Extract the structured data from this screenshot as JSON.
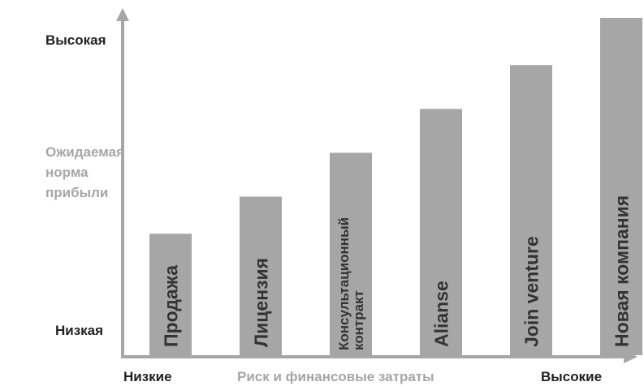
{
  "colors": {
    "bar": "#a6a6a6",
    "axis": "#a6a6a6",
    "text_dark": "#222222",
    "text_muted": "#a6a6a6"
  },
  "chart_data": {
    "type": "bar",
    "categories": [
      "Продажа",
      "Лицензия",
      "Консультационный контракт",
      "Alianse",
      "Join venture",
      "Новая компания"
    ],
    "category_lines": [
      [
        "Продажа"
      ],
      [
        "Лицензия"
      ],
      [
        "Консультационный",
        "контракт"
      ],
      [
        "Alianse"
      ],
      [
        "Join venture"
      ],
      [
        "Новая компания"
      ]
    ],
    "values": [
      36,
      47,
      60,
      73,
      86,
      100
    ],
    "ylim": [
      0,
      100
    ],
    "y_axis": {
      "title_lines": [
        "Ожидаемая",
        "норма",
        "прибыли"
      ],
      "high_label": "Высокая",
      "low_label": "Низкая"
    },
    "x_axis": {
      "title": "Риск и финансовые затраты",
      "low_label": "Низкие",
      "high_label": "Высокие"
    },
    "label_orientation": "vertical",
    "grid": false,
    "legend": false
  }
}
